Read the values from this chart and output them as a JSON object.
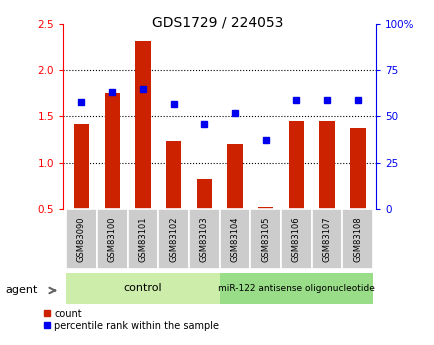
{
  "title": "GDS1729 / 224053",
  "samples": [
    "GSM83090",
    "GSM83100",
    "GSM83101",
    "GSM83102",
    "GSM83103",
    "GSM83104",
    "GSM83105",
    "GSM83106",
    "GSM83107",
    "GSM83108"
  ],
  "red_values": [
    1.42,
    1.75,
    2.32,
    1.23,
    0.82,
    1.2,
    0.52,
    1.45,
    1.45,
    1.38
  ],
  "blue_values": [
    58,
    63,
    65,
    57,
    46,
    52,
    37,
    59,
    59,
    59
  ],
  "ylim_left": [
    0.5,
    2.5
  ],
  "ylim_right": [
    0,
    100
  ],
  "yticks_left": [
    0.5,
    1.0,
    1.5,
    2.0,
    2.5
  ],
  "yticks_right": [
    0,
    25,
    50,
    75,
    100
  ],
  "ytick_labels_right": [
    "0",
    "25",
    "50",
    "75",
    "100%"
  ],
  "bar_color": "#cc2200",
  "dot_color": "#0000ee",
  "control_label": "control",
  "treatment_label": "miR-122 antisense oligonucleotide",
  "agent_label": "agent",
  "legend_count": "count",
  "legend_pct": "percentile rank within the sample",
  "control_bg": "#cceeaa",
  "treatment_bg": "#99dd88",
  "bar_width": 0.5
}
